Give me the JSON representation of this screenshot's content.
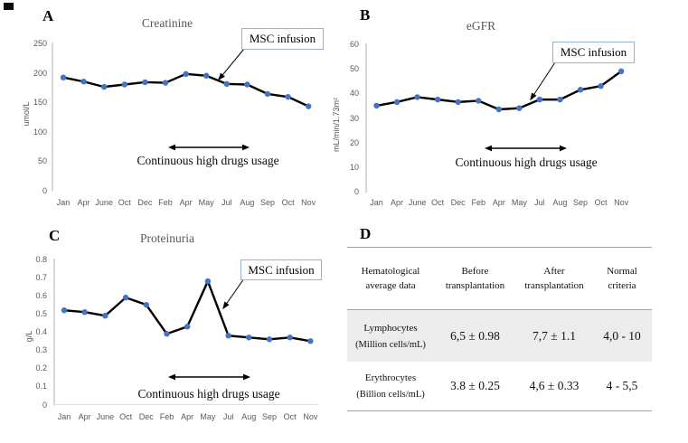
{
  "figure": {
    "panel_labels": {
      "a": "A",
      "b": "B",
      "c": "C",
      "d": "D"
    }
  },
  "chart_data": [
    {
      "id": "a",
      "type": "line",
      "title": "Creatinine",
      "ylabel": "umol/L",
      "xlabel": "",
      "categories": [
        "Jan",
        "Apr",
        "June",
        "Oct",
        "Dec",
        "Feb",
        "Apr",
        "May",
        "Jul",
        "Aug",
        "Sep",
        "Oct",
        "Nov"
      ],
      "values": [
        192,
        185,
        176,
        180,
        184,
        183,
        198,
        195,
        181,
        180,
        164,
        159,
        143
      ],
      "ylim": [
        0,
        250
      ],
      "yticks": [
        0,
        50,
        100,
        150,
        200,
        250
      ],
      "grid": false,
      "legend": "none",
      "line_color": "#000000",
      "marker_color": "#4472C4",
      "annotations": {
        "msc": "MSC infusion",
        "usage": "Continuous high drugs usage"
      }
    },
    {
      "id": "b",
      "type": "line",
      "title": "eGFR",
      "ylabel": "mL/min/1.73m²",
      "xlabel": "",
      "categories": [
        "Jan",
        "Apr",
        "June",
        "Oct",
        "Dec",
        "Feb",
        "Apr",
        "May",
        "Jul",
        "Aug",
        "Sep",
        "Oct",
        "Nov"
      ],
      "values": [
        35,
        36.5,
        38.5,
        37.5,
        36.5,
        37,
        33.5,
        34,
        37.5,
        37.5,
        41.5,
        43,
        49
      ],
      "ylim": [
        0,
        60
      ],
      "yticks": [
        0,
        10,
        20,
        30,
        40,
        50,
        60
      ],
      "grid": false,
      "legend": "none",
      "line_color": "#000000",
      "marker_color": "#4472C4",
      "annotations": {
        "msc": "MSC infusion",
        "usage": "Continuous high drugs usage"
      }
    },
    {
      "id": "c",
      "type": "line",
      "title": "Proteinuria",
      "ylabel": "g/L",
      "xlabel": "",
      "categories": [
        "Jan",
        "Apr",
        "June",
        "Oct",
        "Dec",
        "Feb",
        "Apr",
        "May",
        "Jul",
        "Aug",
        "Sep",
        "Oct",
        "Nov"
      ],
      "values": [
        0.52,
        0.51,
        0.49,
        0.59,
        0.55,
        0.39,
        0.43,
        0.68,
        0.38,
        0.37,
        0.36,
        0.37,
        0.35
      ],
      "ylim": [
        0,
        0.8
      ],
      "yticks": [
        0,
        0.1,
        0.2,
        0.3,
        0.4,
        0.5,
        0.6,
        0.7,
        0.8
      ],
      "grid": false,
      "legend": "none",
      "line_color": "#000000",
      "marker_color": "#4472C4",
      "annotations": {
        "msc": "MSC infusion",
        "usage": "Continuous high drugs usage"
      }
    },
    {
      "id": "d",
      "type": "table",
      "headers": [
        "Hematological\naverage data",
        "Before\ntransplantation",
        "After\ntransplantation",
        "Normal\ncriteria"
      ],
      "rows": [
        {
          "name": "Lymphocytes",
          "unit": "(Million cells/mL)",
          "before": "6,5 ± 0.98",
          "after": "7,7 ± 1.1",
          "normal": "4,0 - 10"
        },
        {
          "name": "Erythrocytes",
          "unit": "(Billion cells/mL)",
          "before": "3.8 ± 0.25",
          "after": "4,6 ± 0.33",
          "normal": "4 - 5,5"
        }
      ]
    }
  ]
}
